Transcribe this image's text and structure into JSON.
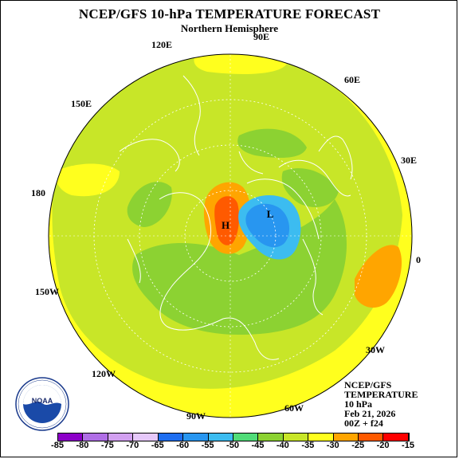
{
  "header": {
    "title": "NCEP/GFS 10-hPa TEMPERATURE FORECAST",
    "subtitle": "Northern Hemisphere"
  },
  "longitudes": {
    "lon_90e": "90E",
    "lon_120e": "120E",
    "lon_60e": "60E",
    "lon_150e": "150E",
    "lon_30e": "30E",
    "lon_180": "180",
    "lon_0": "0",
    "lon_150w": "150W",
    "lon_30w": "30W",
    "lon_120w": "120W",
    "lon_60w": "60W",
    "lon_90w": "90W"
  },
  "markers": {
    "high": "H",
    "low": "L"
  },
  "info_block": {
    "line1": "NCEP/GFS",
    "line2": "TEMPERATURE",
    "line3": "10 hPa",
    "line4": "Feb 21, 2026",
    "line5": "00Z + f24"
  },
  "colorbar": {
    "labels": [
      "-85",
      "-80",
      "-75",
      "-70",
      "-65",
      "-60",
      "-55",
      "-50",
      "-45",
      "-40",
      "-35",
      "-30",
      "-25",
      "-20",
      "-15"
    ],
    "colors": [
      "#8c00c8",
      "#b06ee6",
      "#d2a0f0",
      "#e6c8fa",
      "#1e6ef0",
      "#2896f0",
      "#3cbcf0",
      "#50dc78",
      "#8cd232",
      "#c8e628",
      "#ffff1e",
      "#ffa500",
      "#ff5a00",
      "#ff0000",
      "#8c5a46"
    ]
  },
  "logo": {
    "name": "NOAA",
    "ring_text": "NATIONAL OCEANIC AND ATMOSPHERIC ADMINISTRATION"
  },
  "colors": {
    "outer_yellow": "#ffff1e",
    "yellow_green": "#c8e628",
    "green": "#8cd232",
    "orange": "#ffa500",
    "red_orange": "#ff5a00",
    "blue": "#2896f0",
    "light_blue": "#3cbcf0"
  }
}
